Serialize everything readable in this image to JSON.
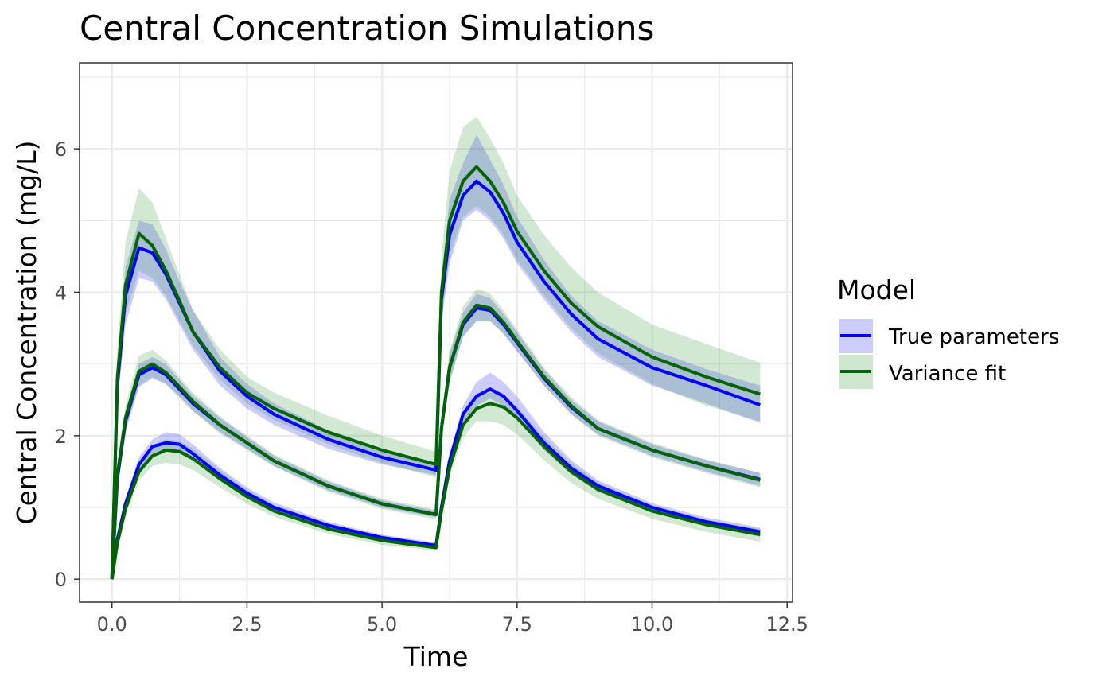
{
  "chart_data": {
    "type": "line",
    "title": "Central Concentration Simulations",
    "xlabel": "Time",
    "ylabel": "Central Concentration (mg/L)",
    "xlim": [
      -0.6,
      12.6
    ],
    "ylim": [
      -0.32,
      7.2
    ],
    "xticks": [
      "0.0",
      "2.5",
      "5.0",
      "7.5",
      "10.0",
      "12.5"
    ],
    "yticks": [
      "0",
      "2",
      "4",
      "6"
    ],
    "grid": true,
    "legend": {
      "title": "Model",
      "placement": "right",
      "entries": [
        "True parameters",
        "Variance fit"
      ]
    },
    "x": [
      0,
      0.1,
      0.25,
      0.5,
      0.75,
      1.0,
      1.25,
      1.5,
      2.0,
      2.5,
      3.0,
      4.0,
      5.0,
      6.0,
      6.1,
      6.25,
      6.5,
      6.75,
      7.0,
      7.25,
      7.5,
      8.0,
      8.5,
      9.0,
      10.0,
      11.0,
      12.0
    ],
    "series": [
      {
        "name": "True parameters",
        "color": "#0000ff",
        "band_color": "#0000ff",
        "curves": [
          {
            "label": "upper",
            "y": [
              0,
              2.7,
              3.95,
              4.62,
              4.55,
              4.25,
              3.85,
              3.45,
              2.9,
              2.55,
              2.3,
              1.95,
              1.7,
              1.52,
              3.9,
              4.8,
              5.35,
              5.55,
              5.4,
              5.1,
              4.7,
              4.15,
              3.7,
              3.35,
              2.95,
              2.7,
              2.43
            ],
            "lo": [
              0,
              2.4,
              3.55,
              4.2,
              4.15,
              3.9,
              3.55,
              3.2,
              2.7,
              2.38,
              2.15,
              1.82,
              1.6,
              1.45,
              3.6,
              4.4,
              5.0,
              5.15,
              5.0,
              4.75,
              4.4,
              3.9,
              3.45,
              3.1,
              2.7,
              2.45,
              2.18
            ],
            "hi": [
              0,
              3.0,
              4.35,
              5.0,
              4.95,
              4.6,
              4.15,
              3.75,
              3.1,
              2.72,
              2.45,
              2.08,
              1.82,
              1.62,
              4.2,
              5.3,
              5.8,
              6.2,
              5.85,
              5.5,
              5.05,
              4.45,
              3.95,
              3.6,
              3.2,
              2.93,
              2.7
            ]
          },
          {
            "label": "middle",
            "y": [
              0,
              1.4,
              2.2,
              2.85,
              2.95,
              2.85,
              2.65,
              2.45,
              2.15,
              1.9,
              1.65,
              1.3,
              1.05,
              0.9,
              2.1,
              2.95,
              3.55,
              3.78,
              3.75,
              3.55,
              3.3,
              2.8,
              2.4,
              2.1,
              1.8,
              1.58,
              1.39
            ],
            "lo": [
              0,
              1.3,
              2.05,
              2.68,
              2.8,
              2.72,
              2.55,
              2.35,
              2.05,
              1.82,
              1.58,
              1.24,
              1.0,
              0.86,
              1.95,
              2.75,
              3.38,
              3.6,
              3.6,
              3.42,
              3.18,
              2.7,
              2.3,
              2.02,
              1.72,
              1.5,
              1.3
            ],
            "hi": [
              0,
              1.5,
              2.35,
              3.0,
              3.1,
              3.0,
              2.78,
              2.56,
              2.25,
              1.98,
              1.72,
              1.36,
              1.1,
              0.95,
              2.25,
              3.15,
              3.72,
              3.98,
              3.92,
              3.7,
              3.44,
              2.92,
              2.5,
              2.2,
              1.88,
              1.66,
              1.48
            ]
          },
          {
            "label": "lower",
            "y": [
              0,
              0.55,
              1.05,
              1.6,
              1.85,
              1.9,
              1.88,
              1.75,
              1.45,
              1.2,
              1.0,
              0.75,
              0.58,
              0.47,
              1.0,
              1.65,
              2.3,
              2.55,
              2.65,
              2.55,
              2.35,
              1.9,
              1.55,
              1.3,
              1.0,
              0.8,
              0.66
            ],
            "lo": [
              0,
              0.5,
              0.98,
              1.52,
              1.76,
              1.82,
              1.78,
              1.66,
              1.37,
              1.13,
              0.94,
              0.7,
              0.54,
              0.43,
              0.92,
              1.55,
              2.18,
              2.42,
              2.52,
              2.42,
              2.22,
              1.8,
              1.46,
              1.22,
              0.93,
              0.74,
              0.6
            ],
            "hi": [
              0,
              0.6,
              1.12,
              1.7,
              1.95,
              2.05,
              2.02,
              1.88,
              1.55,
              1.28,
              1.07,
              0.8,
              0.62,
              0.51,
              1.08,
              1.75,
              2.42,
              2.75,
              2.88,
              2.75,
              2.55,
              2.05,
              1.66,
              1.38,
              1.06,
              0.86,
              0.72
            ]
          }
        ]
      },
      {
        "name": "Variance fit",
        "color": "#006400",
        "band_color": "#228b22",
        "curves": [
          {
            "label": "upper",
            "y": [
              0,
              2.8,
              4.1,
              4.82,
              4.65,
              4.3,
              3.88,
              3.45,
              2.95,
              2.6,
              2.38,
              2.05,
              1.8,
              1.6,
              4.0,
              5.0,
              5.55,
              5.75,
              5.55,
              5.25,
              4.85,
              4.3,
              3.85,
              3.52,
              3.1,
              2.82,
              2.58
            ],
            "lo": [
              0,
              2.5,
              3.7,
              4.3,
              4.2,
              3.95,
              3.6,
              3.25,
              2.78,
              2.45,
              2.22,
              1.88,
              1.62,
              1.42,
              3.6,
              4.5,
              5.05,
              5.2,
              5.05,
              4.8,
              4.45,
              3.95,
              3.5,
              3.15,
              2.72,
              2.42,
              2.2
            ],
            "hi": [
              0,
              3.2,
              4.7,
              5.45,
              5.25,
              4.75,
              4.25,
              3.75,
              3.2,
              2.82,
              2.6,
              2.28,
              2.0,
              1.78,
              4.5,
              5.7,
              6.3,
              6.45,
              6.15,
              5.8,
              5.35,
              4.8,
              4.35,
              4.0,
              3.55,
              3.28,
              3.02
            ]
          },
          {
            "label": "middle",
            "y": [
              0,
              1.45,
              2.25,
              2.9,
              3.0,
              2.88,
              2.68,
              2.48,
              2.15,
              1.9,
              1.65,
              1.3,
              1.05,
              0.9,
              2.1,
              2.95,
              3.58,
              3.82,
              3.78,
              3.58,
              3.32,
              2.82,
              2.42,
              2.1,
              1.8,
              1.58,
              1.38
            ],
            "lo": [
              0,
              1.32,
              2.08,
              2.7,
              2.82,
              2.72,
              2.52,
              2.34,
              2.03,
              1.8,
              1.57,
              1.22,
              0.98,
              0.83,
              1.95,
              2.75,
              3.38,
              3.6,
              3.6,
              3.42,
              3.18,
              2.7,
              2.3,
              2.0,
              1.7,
              1.48,
              1.28
            ],
            "hi": [
              0,
              1.58,
              2.42,
              3.12,
              3.2,
              3.05,
              2.82,
              2.6,
              2.27,
              2.0,
              1.74,
              1.38,
              1.12,
              0.97,
              2.28,
              3.18,
              3.8,
              4.05,
              3.98,
              3.75,
              3.48,
              2.95,
              2.54,
              2.22,
              1.9,
              1.67,
              1.48
            ]
          },
          {
            "label": "lower",
            "y": [
              0,
              0.5,
              0.98,
              1.5,
              1.72,
              1.8,
              1.78,
              1.68,
              1.4,
              1.15,
              0.95,
              0.7,
              0.54,
              0.44,
              0.95,
              1.55,
              2.15,
              2.38,
              2.45,
              2.4,
              2.25,
              1.85,
              1.5,
              1.25,
              0.95,
              0.76,
              0.62
            ],
            "lo": [
              0,
              0.44,
              0.88,
              1.38,
              1.58,
              1.62,
              1.6,
              1.52,
              1.28,
              1.05,
              0.87,
              0.63,
              0.48,
              0.4,
              0.85,
              1.42,
              1.98,
              2.2,
              2.2,
              2.15,
              2.02,
              1.66,
              1.34,
              1.12,
              0.84,
              0.66,
              0.52
            ],
            "hi": [
              0,
              0.56,
              1.08,
              1.62,
              1.86,
              1.95,
              1.93,
              1.82,
              1.52,
              1.25,
              1.03,
              0.77,
              0.6,
              0.49,
              1.05,
              1.68,
              2.32,
              2.55,
              2.6,
              2.55,
              2.4,
              1.98,
              1.62,
              1.35,
              1.03,
              0.83,
              0.7
            ]
          }
        ]
      }
    ]
  }
}
